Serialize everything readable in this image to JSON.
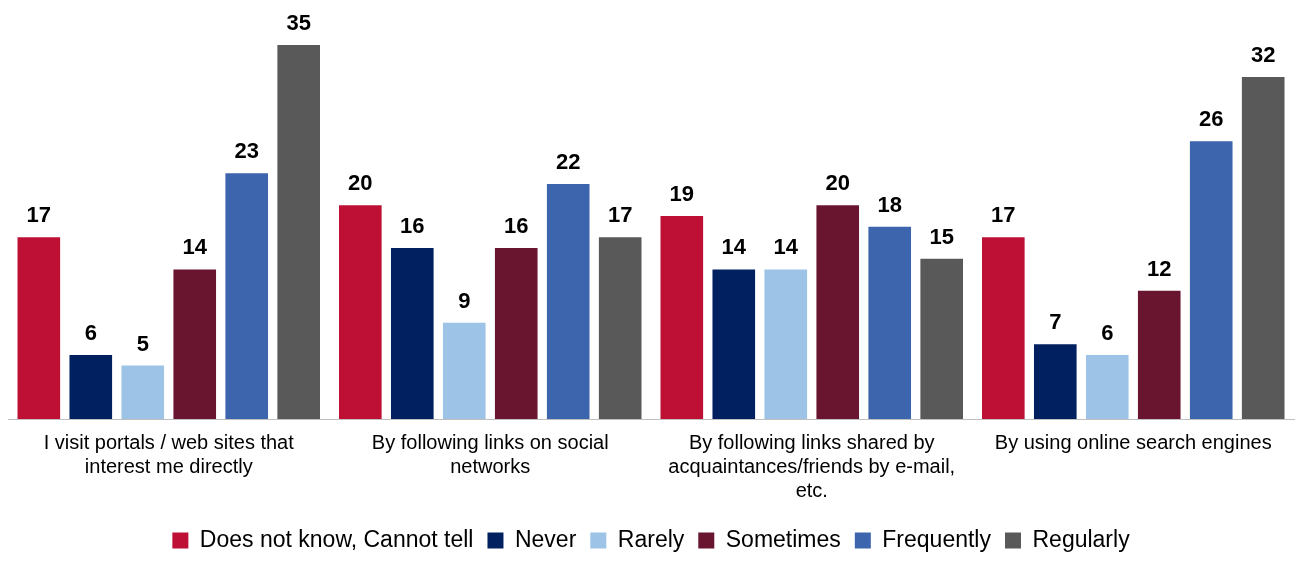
{
  "chart_data": {
    "type": "bar",
    "categories": [
      "I visit portals / web sites that interest me directly",
      "By following links on social networks",
      "By following links shared by acquaintances/friends by e-mail, etc.",
      "By using online search engines"
    ],
    "series": [
      {
        "name": "Does not know, Cannot tell",
        "color": "#be0f34",
        "values": [
          17,
          20,
          19,
          17
        ]
      },
      {
        "name": "Never",
        "color": "#002060",
        "values": [
          6,
          16,
          14,
          7
        ]
      },
      {
        "name": "Rarely",
        "color": "#9dc3e6",
        "values": [
          5,
          9,
          14,
          6
        ]
      },
      {
        "name": "Sometimes",
        "color": "#6a1530",
        "values": [
          14,
          16,
          20,
          12
        ]
      },
      {
        "name": "Frequently",
        "color": "#3d65ad",
        "values": [
          23,
          22,
          18,
          26
        ]
      },
      {
        "name": "Regularly",
        "color": "#595959",
        "values": [
          35,
          17,
          15,
          32
        ]
      }
    ],
    "data_labels": true,
    "legend": "bottom"
  }
}
